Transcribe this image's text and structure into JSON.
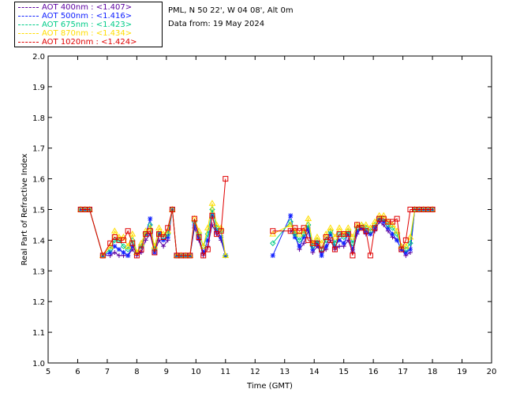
{
  "header": {
    "site": "PML, N 50 22', W 04 08', Alt 0m",
    "date": "Data from: 19 May 2024"
  },
  "chart_data": {
    "type": "line",
    "title": "",
    "xlabel": "Time (GMT)",
    "ylabel": "Real Part of Refractive Index",
    "xlim": [
      5,
      20
    ],
    "ylim": [
      1.0,
      2.0
    ],
    "xticks": [
      "5",
      "6",
      "7",
      "8",
      "9",
      "10",
      "11",
      "12",
      "13",
      "14",
      "15",
      "16",
      "17",
      "18",
      "19",
      "20"
    ],
    "yticks": [
      "1.0",
      "1.1",
      "1.2",
      "1.3",
      "1.4",
      "1.5",
      "1.6",
      "1.7",
      "1.8",
      "1.9",
      "2.0"
    ],
    "legend_position": "top-left, outside plot",
    "series": [
      {
        "name": "AOT 400nm : <1.407>",
        "color": "#5a00a0",
        "marker": "plus",
        "x": [
          6.1,
          6.25,
          6.4,
          6.85,
          7.1,
          7.25,
          7.4,
          7.55,
          7.7,
          7.85,
          8.0,
          8.15,
          8.3,
          8.45,
          8.6,
          8.75,
          8.9,
          9.05,
          9.2,
          9.35,
          9.5,
          9.65,
          9.8,
          9.95,
          10.1,
          10.25,
          10.4,
          10.55,
          10.7,
          10.85,
          11.0,
          13.2,
          13.35,
          13.5,
          13.65,
          13.8,
          13.95,
          14.1,
          14.25,
          14.4,
          14.55,
          14.7,
          14.85,
          15.0,
          15.15,
          15.3,
          15.45,
          15.6,
          15.75,
          15.9,
          16.05,
          16.2,
          16.35,
          16.5,
          16.65,
          16.8,
          16.95,
          17.1,
          17.25,
          17.4,
          17.55,
          17.7,
          17.85,
          18.0
        ],
        "y": [
          1.5,
          1.5,
          1.5,
          1.35,
          1.35,
          1.36,
          1.35,
          1.35,
          1.35,
          1.37,
          1.35,
          1.36,
          1.4,
          1.42,
          1.36,
          1.4,
          1.38,
          1.4,
          1.5,
          1.35,
          1.35,
          1.35,
          1.35,
          1.44,
          1.4,
          1.35,
          1.38,
          1.45,
          1.42,
          1.4,
          1.35,
          1.43,
          1.42,
          1.37,
          1.39,
          1.43,
          1.36,
          1.38,
          1.36,
          1.37,
          1.4,
          1.37,
          1.38,
          1.38,
          1.4,
          1.36,
          1.42,
          1.44,
          1.42,
          1.42,
          1.43,
          1.46,
          1.45,
          1.43,
          1.41,
          1.4,
          1.37,
          1.35,
          1.36,
          1.5,
          1.5,
          1.5,
          1.5,
          1.5
        ]
      },
      {
        "name": "AOT 500nm : <1.416>",
        "color": "#1020ff",
        "marker": "star",
        "x": [
          6.1,
          6.25,
          6.4,
          6.85,
          7.1,
          7.25,
          7.4,
          7.55,
          7.7,
          7.85,
          8.0,
          8.15,
          8.3,
          8.45,
          8.6,
          8.75,
          8.9,
          9.05,
          9.2,
          9.35,
          9.5,
          9.65,
          9.8,
          9.95,
          10.1,
          10.25,
          10.4,
          10.55,
          10.7,
          10.85,
          11.0,
          12.6,
          13.2,
          13.35,
          13.5,
          13.65,
          13.8,
          13.95,
          14.1,
          14.25,
          14.4,
          14.55,
          14.7,
          14.85,
          15.0,
          15.15,
          15.3,
          15.45,
          15.6,
          15.75,
          15.9,
          16.05,
          16.2,
          16.35,
          16.5,
          16.65,
          16.8,
          16.95,
          17.1,
          17.25,
          17.4,
          17.55,
          17.7,
          17.85,
          18.0
        ],
        "y": [
          1.5,
          1.5,
          1.5,
          1.35,
          1.36,
          1.38,
          1.37,
          1.36,
          1.35,
          1.38,
          1.36,
          1.38,
          1.42,
          1.47,
          1.36,
          1.42,
          1.4,
          1.41,
          1.5,
          1.35,
          1.35,
          1.35,
          1.35,
          1.45,
          1.41,
          1.36,
          1.4,
          1.48,
          1.43,
          1.41,
          1.35,
          1.35,
          1.48,
          1.41,
          1.38,
          1.41,
          1.44,
          1.37,
          1.39,
          1.35,
          1.38,
          1.42,
          1.38,
          1.4,
          1.39,
          1.42,
          1.37,
          1.43,
          1.44,
          1.43,
          1.42,
          1.44,
          1.47,
          1.46,
          1.44,
          1.42,
          1.4,
          1.37,
          1.36,
          1.37,
          1.5,
          1.5,
          1.5,
          1.5,
          1.5
        ]
      },
      {
        "name": "AOT 675nm : <1.423>",
        "color": "#00cc88",
        "marker": "diamond",
        "x": [
          6.1,
          6.25,
          6.4,
          6.85,
          7.1,
          7.25,
          7.4,
          7.55,
          7.7,
          7.85,
          8.0,
          8.15,
          8.3,
          8.45,
          8.6,
          8.75,
          8.9,
          9.05,
          9.2,
          9.35,
          9.5,
          9.65,
          9.8,
          9.95,
          10.1,
          10.25,
          10.4,
          10.55,
          10.7,
          10.85,
          11.0,
          12.6,
          13.2,
          13.35,
          13.5,
          13.65,
          13.8,
          13.95,
          14.1,
          14.25,
          14.4,
          14.55,
          14.7,
          14.85,
          15.0,
          15.15,
          15.3,
          15.45,
          15.6,
          15.75,
          15.9,
          16.05,
          16.2,
          16.35,
          16.5,
          16.65,
          16.8,
          16.95,
          17.1,
          17.25,
          17.4,
          17.55,
          17.7,
          17.85,
          18.0
        ],
        "y": [
          1.5,
          1.5,
          1.5,
          1.35,
          1.37,
          1.4,
          1.4,
          1.38,
          1.37,
          1.4,
          1.36,
          1.38,
          1.42,
          1.45,
          1.37,
          1.42,
          1.41,
          1.42,
          1.5,
          1.35,
          1.35,
          1.35,
          1.35,
          1.46,
          1.42,
          1.38,
          1.42,
          1.5,
          1.44,
          1.43,
          1.35,
          1.39,
          1.46,
          1.42,
          1.4,
          1.42,
          1.45,
          1.38,
          1.4,
          1.37,
          1.4,
          1.43,
          1.39,
          1.42,
          1.41,
          1.43,
          1.39,
          1.44,
          1.45,
          1.44,
          1.43,
          1.45,
          1.47,
          1.47,
          1.45,
          1.44,
          1.42,
          1.38,
          1.37,
          1.39,
          1.5,
          1.5,
          1.5,
          1.5,
          1.5
        ]
      },
      {
        "name": "AOT 870nm : <1.434>",
        "color": "#ffdd00",
        "marker": "triangle",
        "x": [
          6.1,
          6.25,
          6.4,
          6.85,
          7.1,
          7.25,
          7.4,
          7.55,
          7.7,
          7.85,
          8.0,
          8.15,
          8.3,
          8.45,
          8.6,
          8.75,
          8.9,
          9.05,
          9.2,
          9.35,
          9.5,
          9.65,
          9.8,
          9.95,
          10.1,
          10.25,
          10.4,
          10.55,
          10.7,
          10.85,
          11.0,
          12.6,
          13.2,
          13.35,
          13.5,
          13.65,
          13.8,
          13.95,
          14.1,
          14.25,
          14.4,
          14.55,
          14.7,
          14.85,
          15.0,
          15.15,
          15.3,
          15.45,
          15.6,
          15.75,
          15.9,
          16.05,
          16.2,
          16.35,
          16.5,
          16.65,
          16.8,
          16.95,
          17.1,
          17.25,
          17.4,
          17.55,
          17.7,
          17.85,
          18.0
        ],
        "y": [
          1.5,
          1.5,
          1.5,
          1.35,
          1.38,
          1.43,
          1.41,
          1.41,
          1.38,
          1.42,
          1.36,
          1.39,
          1.43,
          1.44,
          1.38,
          1.44,
          1.42,
          1.43,
          1.5,
          1.35,
          1.35,
          1.35,
          1.35,
          1.47,
          1.43,
          1.38,
          1.44,
          1.52,
          1.45,
          1.44,
          1.35,
          1.42,
          1.45,
          1.43,
          1.42,
          1.43,
          1.47,
          1.39,
          1.41,
          1.39,
          1.42,
          1.44,
          1.41,
          1.44,
          1.42,
          1.44,
          1.41,
          1.45,
          1.45,
          1.45,
          1.44,
          1.46,
          1.48,
          1.48,
          1.46,
          1.45,
          1.43,
          1.38,
          1.38,
          1.41,
          1.5,
          1.5,
          1.5,
          1.5,
          1.5
        ]
      },
      {
        "name": "AOT 1020nm : <1.424>",
        "color": "#e00000",
        "marker": "square",
        "x": [
          6.1,
          6.25,
          6.4,
          6.85,
          7.1,
          7.25,
          7.4,
          7.55,
          7.7,
          7.85,
          8.0,
          8.15,
          8.3,
          8.45,
          8.6,
          8.75,
          8.9,
          9.05,
          9.2,
          9.35,
          9.5,
          9.65,
          9.8,
          9.95,
          10.1,
          10.25,
          10.4,
          10.55,
          10.7,
          10.85,
          11.0,
          12.6,
          13.2,
          13.35,
          13.5,
          13.65,
          13.8,
          13.95,
          14.1,
          14.25,
          14.4,
          14.55,
          14.7,
          14.85,
          15.0,
          15.15,
          15.3,
          15.45,
          15.6,
          15.75,
          15.9,
          16.05,
          16.2,
          16.35,
          16.5,
          16.65,
          16.8,
          16.95,
          17.1,
          17.25,
          17.4,
          17.55,
          17.7,
          17.85,
          18.0
        ],
        "y": [
          1.5,
          1.5,
          1.5,
          1.35,
          1.39,
          1.41,
          1.4,
          1.4,
          1.43,
          1.39,
          1.35,
          1.37,
          1.42,
          1.43,
          1.36,
          1.42,
          1.41,
          1.44,
          1.5,
          1.35,
          1.35,
          1.35,
          1.35,
          1.47,
          1.41,
          1.35,
          1.37,
          1.48,
          1.42,
          1.43,
          1.6,
          1.43,
          1.43,
          1.44,
          1.43,
          1.44,
          1.4,
          1.39,
          1.39,
          1.37,
          1.41,
          1.4,
          1.37,
          1.42,
          1.42,
          1.42,
          1.35,
          1.45,
          1.44,
          1.43,
          1.35,
          1.44,
          1.47,
          1.47,
          1.46,
          1.46,
          1.47,
          1.37,
          1.4,
          1.5,
          1.5,
          1.5,
          1.5,
          1.5,
          1.5
        ]
      }
    ]
  }
}
